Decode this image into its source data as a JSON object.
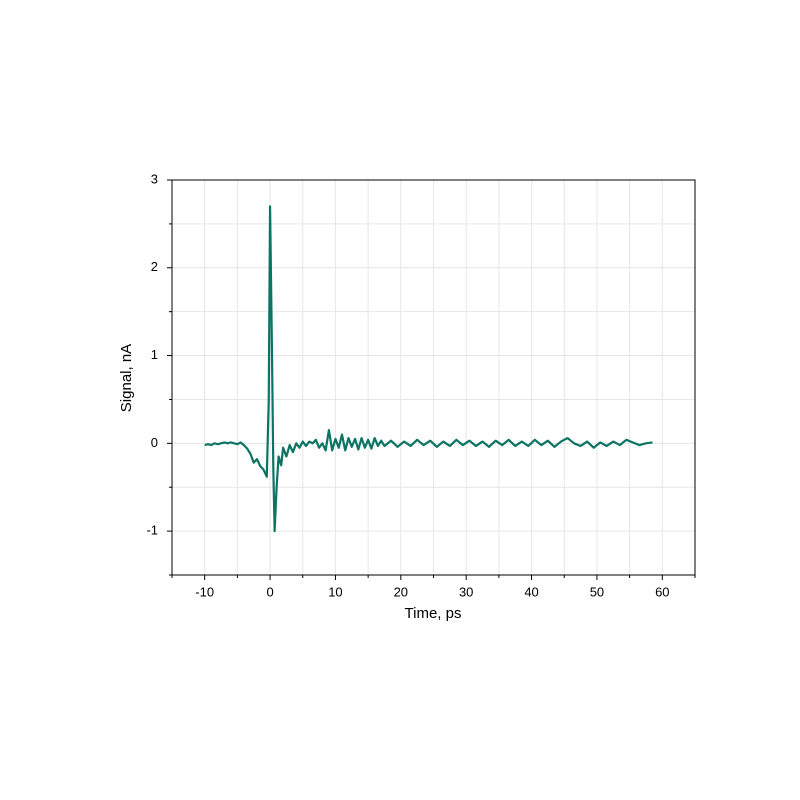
{
  "chart_data": {
    "type": "line",
    "x_label": "Time, ps",
    "y_label": "Signal, nA",
    "xlim": [
      -15,
      65
    ],
    "ylim": [
      -1.5,
      3
    ],
    "xticks": [
      -10,
      0,
      10,
      20,
      30,
      40,
      50,
      60
    ],
    "yticks": [
      -1,
      0,
      1,
      2,
      3
    ],
    "xminor": [
      -15,
      -5,
      5,
      15,
      25,
      35,
      45,
      55,
      65
    ],
    "yminor": [
      -1.5,
      -0.5,
      0.5,
      1.5,
      2.5
    ],
    "grid": true,
    "x": [
      -10,
      -9.5,
      -9,
      -8.5,
      -8,
      -7.5,
      -7,
      -6.5,
      -6,
      -5.5,
      -5,
      -4.5,
      -4,
      -3.5,
      -3,
      -2.5,
      -2,
      -1.5,
      -1,
      -0.5,
      -0.2,
      0,
      0.3,
      0.5,
      0.7,
      1,
      1.3,
      1.7,
      2,
      2.5,
      3,
      3.5,
      4,
      4.5,
      5,
      5.5,
      6,
      6.5,
      7,
      7.5,
      8,
      8.5,
      9,
      9.5,
      10,
      10.5,
      11,
      11.5,
      12,
      12.5,
      13,
      13.5,
      14,
      14.5,
      15,
      15.5,
      16,
      16.5,
      17,
      17.5,
      18.5,
      19.5,
      20.5,
      21.5,
      22.5,
      23.5,
      24.5,
      25.5,
      26.5,
      27.5,
      28.5,
      29.5,
      30.5,
      31.5,
      32.5,
      33.5,
      34.5,
      35.5,
      36.5,
      37.5,
      38.5,
      39.5,
      40.5,
      41.5,
      42.5,
      43.5,
      44.5,
      45.5,
      46.5,
      47.5,
      48.5,
      49.5,
      50.5,
      51.5,
      52.5,
      53.5,
      54.5,
      55.5,
      56.5,
      57.5,
      58.5
    ],
    "series": [
      {
        "color": "#0b7462",
        "values": [
          -0.02,
          -0.01,
          -0.02,
          0,
          -0.01,
          0,
          0.01,
          0,
          0.01,
          0,
          -0.01,
          0.01,
          -0.02,
          -0.06,
          -0.12,
          -0.22,
          -0.18,
          -0.26,
          -0.3,
          -0.38,
          0.5,
          2.7,
          1.0,
          -0.3,
          -1.0,
          -0.5,
          -0.15,
          -0.25,
          -0.05,
          -0.15,
          -0.02,
          -0.1,
          0.0,
          -0.05,
          0.02,
          -0.03,
          0.02,
          0.0,
          0.04,
          -0.05,
          0.0,
          -0.08,
          0.15,
          -0.08,
          0.05,
          -0.05,
          0.1,
          -0.08,
          0.06,
          -0.04,
          0.05,
          -0.07,
          0.06,
          -0.05,
          0.04,
          -0.06,
          0.06,
          -0.03,
          0.03,
          -0.03,
          0.03,
          -0.04,
          0.02,
          -0.03,
          0.04,
          -0.02,
          0.03,
          -0.04,
          0.02,
          -0.03,
          0.04,
          -0.02,
          0.03,
          -0.03,
          0.02,
          -0.04,
          0.03,
          -0.02,
          0.04,
          -0.03,
          0.02,
          -0.03,
          0.04,
          -0.02,
          0.03,
          -0.04,
          0.02,
          0.06,
          0.0,
          -0.03,
          0.02,
          -0.05,
          0.01,
          -0.03,
          0.02,
          -0.02,
          0.04,
          0.01,
          -0.02,
          0.0,
          0.01
        ]
      }
    ]
  }
}
